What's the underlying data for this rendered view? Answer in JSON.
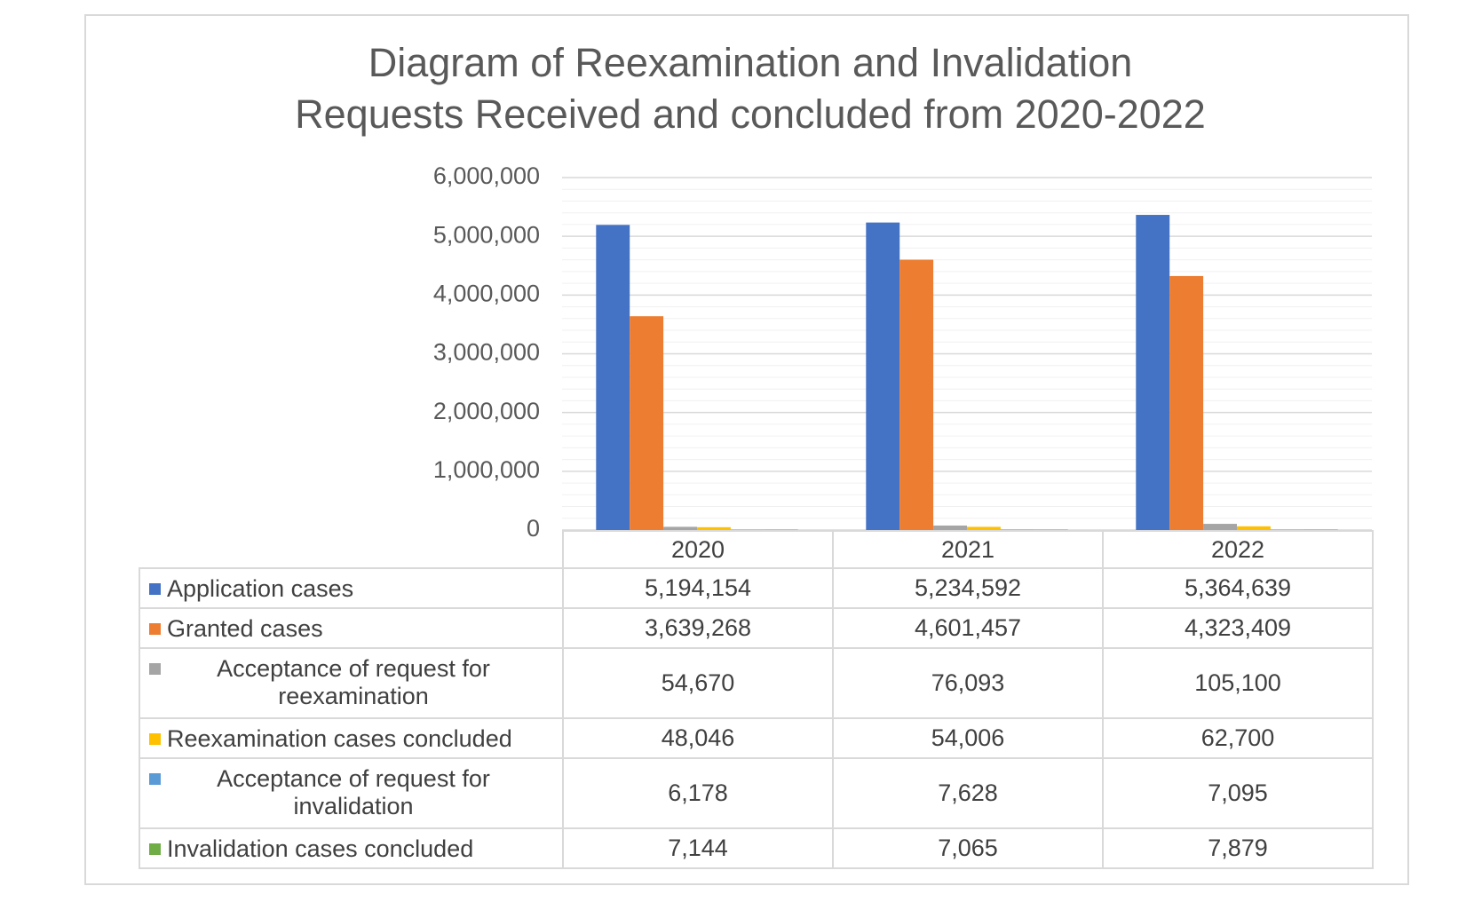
{
  "chart_data": {
    "type": "bar",
    "title": "Diagram of Reexamination and Invalidation Requests Received and concluded from 2020-2022",
    "categories": [
      "2020",
      "2021",
      "2022"
    ],
    "series": [
      {
        "name": "Application cases",
        "color": "#4472c4",
        "values": [
          5194154,
          5234592,
          5364639
        ],
        "value_labels": [
          "5,194,154",
          "5,234,592",
          "5,364,639"
        ]
      },
      {
        "name": "Granted cases",
        "color": "#ed7d31",
        "values": [
          3639268,
          4601457,
          4323409
        ],
        "value_labels": [
          "3,639,268",
          "4,601,457",
          "4,323,409"
        ]
      },
      {
        "name": "Acceptance of request for reexamination",
        "color": "#a5a5a5",
        "values": [
          54670,
          76093,
          105100
        ],
        "value_labels": [
          "54,670",
          "76,093",
          "105,100"
        ]
      },
      {
        "name": "Reexamination cases concluded",
        "color": "#ffc000",
        "values": [
          48046,
          54006,
          62700
        ],
        "value_labels": [
          "48,046",
          "54,006",
          "62,700"
        ]
      },
      {
        "name": "Acceptance of request for invalidation",
        "color": "#5b9bd5",
        "values": [
          6178,
          7628,
          7095
        ],
        "value_labels": [
          "6,178",
          "7,628",
          "7,095"
        ]
      },
      {
        "name": "Invalidation cases concluded",
        "color": "#70ad47",
        "values": [
          7144,
          7065,
          7879
        ],
        "value_labels": [
          "7,144",
          "7,065",
          "7,879"
        ]
      }
    ],
    "ylim": [
      0,
      6000000
    ],
    "yticks": [
      0,
      {
        "value": 1000000,
        "label": "1,000,000"
      },
      {
        "value": 2000000,
        "label": "2,000,000"
      },
      {
        "value": 3000000,
        "label": "3,000,000"
      },
      {
        "value": 4000000,
        "label": "4,000,000"
      },
      {
        "value": 5000000,
        "label": "5,000,000"
      },
      {
        "value": 6000000,
        "label": "6,000,000"
      }
    ],
    "grid": true
  }
}
